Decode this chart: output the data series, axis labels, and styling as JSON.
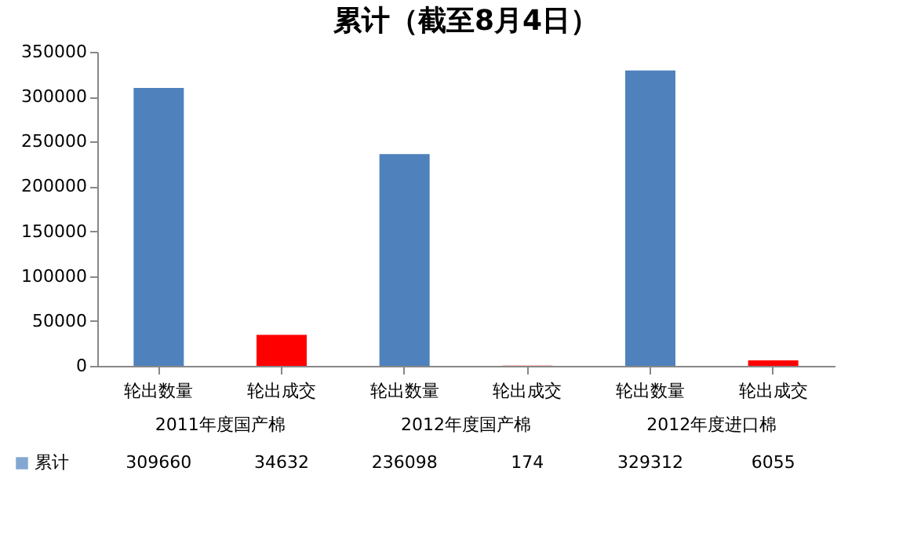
{
  "chart_data": {
    "type": "bar",
    "title": "累计（截至8月4日）",
    "categories": [
      "轮出数量",
      "轮出成交",
      "轮出数量",
      "轮出成交",
      "轮出数量",
      "轮出成交"
    ],
    "series": [
      {
        "name": "累计",
        "color": "#4f81bd",
        "colors": [
          "#4f81bd",
          "#ff0000",
          "#4f81bd",
          "#ff0000",
          "#4f81bd",
          "#ff0000"
        ],
        "values": [
          309660,
          34632,
          236098,
          174,
          329312,
          6055
        ]
      }
    ],
    "annotations": [
      "2011年度国产棉",
      "2012年度国产棉",
      "2012年度进口棉"
    ],
    "ylim": [
      0,
      350000
    ],
    "yticks": [
      0,
      50000,
      100000,
      150000,
      200000,
      250000,
      300000,
      350000
    ],
    "grid": false,
    "data_labels": true,
    "legend": "bottom left"
  }
}
